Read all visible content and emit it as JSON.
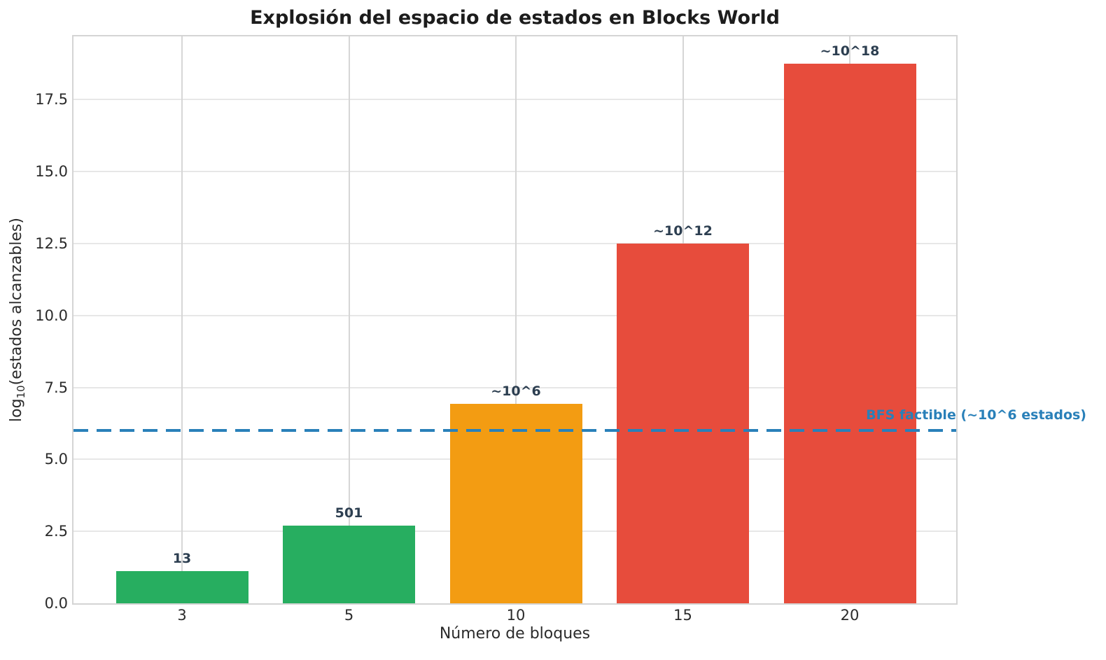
{
  "chart_data": {
    "type": "bar",
    "title": "Explosión del espacio de estados en Blocks World",
    "xlabel": "Número de bloques",
    "ylabel": {
      "prefix": "log",
      "subscript": "10",
      "suffix": "(estados alcanzables)"
    },
    "categories": [
      "3",
      "5",
      "10",
      "15",
      "20"
    ],
    "values": [
      1.11,
      2.7,
      6.94,
      12.5,
      18.75
    ],
    "bar_labels": [
      "13",
      "501",
      "~10^6",
      "~10^12",
      "~10^18"
    ],
    "bar_colors": [
      "#27ae60",
      "#27ae60",
      "#f39c12",
      "#e74c3c",
      "#e74c3c"
    ],
    "yticks": [
      "0.0",
      "2.5",
      "5.0",
      "7.5",
      "10.0",
      "12.5",
      "15.0",
      "17.5"
    ],
    "ylim": [
      0,
      19.7
    ],
    "grid": true,
    "legend_position": "none",
    "bar_label_color": "#2c3e50",
    "tick_color": "#2b2b2b",
    "reference_line": {
      "y": 6,
      "label": "BFS factible (~10^6 estados)",
      "color": "#2980b9",
      "style": "dashed"
    }
  }
}
